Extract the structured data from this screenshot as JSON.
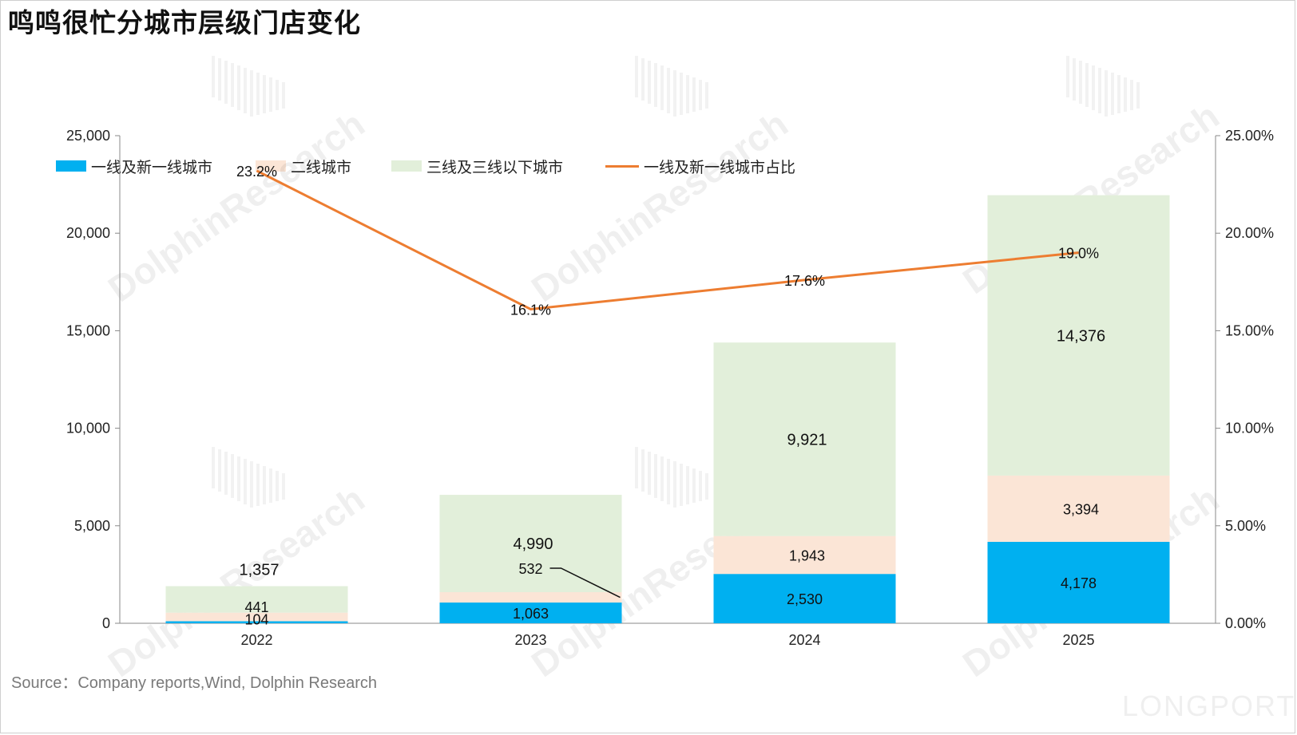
{
  "title": "鸣鸣很忙分城市层级门店变化",
  "source": "Source：Company reports,Wind, Dolphin Research",
  "watermark": {
    "text": "DolphinResearch",
    "brand": "LONGPORT"
  },
  "colors": {
    "tier1": "#00b0f0",
    "tier2": "#fbe5d6",
    "tier3": "#e2efda",
    "line": "#ed7d31"
  },
  "chart_data": {
    "type": "bar",
    "stacked": true,
    "categories": [
      "2022",
      "2023",
      "2024",
      "2025"
    ],
    "series": [
      {
        "name": "一线及新一线城市",
        "values": [
          104,
          1063,
          2530,
          4178
        ],
        "labels": [
          "104",
          "1,063",
          "2,530",
          "4,178"
        ]
      },
      {
        "name": "二线城市",
        "values": [
          441,
          532,
          1943,
          3394
        ],
        "labels": [
          "441",
          "532",
          "1,943",
          "3,394"
        ]
      },
      {
        "name": "三线及三线以下城市",
        "values": [
          1357,
          4990,
          9921,
          14376
        ],
        "labels": [
          "1,357",
          "4,990",
          "9,921",
          "14,376"
        ]
      }
    ],
    "line_series": {
      "name": "一线及新一线城市占比",
      "values": [
        23.2,
        16.1,
        17.6,
        19.0
      ],
      "labels": [
        "23.2%",
        "16.1%",
        "17.6%",
        "19.0%"
      ],
      "axis": "right"
    },
    "ylim": [
      0,
      25000
    ],
    "y_ticks": [
      "0",
      "5,000",
      "10,000",
      "15,000",
      "20,000",
      "25,000"
    ],
    "y2lim": [
      0,
      25
    ],
    "y2_ticks": [
      "0.00%",
      "5.00%",
      "10.00%",
      "15.00%",
      "20.00%",
      "25.00%"
    ],
    "legend_position": "top",
    "grid": false
  }
}
